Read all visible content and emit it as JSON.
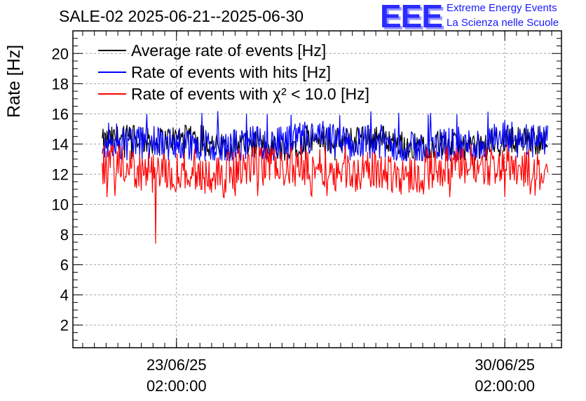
{
  "header": {
    "title": "SALE-02 2025-06-21--2025-06-30",
    "logo_text": "EEE",
    "logo_line1": "Extreme Energy Events",
    "logo_line2": "La Scienza nelle Scuole"
  },
  "chart_data": {
    "type": "line",
    "ylabel": "Rate [Hz]",
    "ylim": [
      0.5,
      21.5
    ],
    "yticks": [
      2,
      4,
      6,
      8,
      10,
      12,
      14,
      16,
      18,
      20
    ],
    "xlim": [
      "2025-06-20 21:00",
      "2025-07-01 07:00"
    ],
    "xticks": [
      {
        "x": "2025-06-23 02:00",
        "label1": "23/06/25",
        "label2": "02:00:00"
      },
      {
        "x": "2025-06-30 02:00",
        "label1": "30/06/25",
        "label2": "02:00:00"
      }
    ],
    "grid": true,
    "legend_position": "top-left",
    "series": [
      {
        "name": "Average rate of events [Hz]",
        "color": "#000000",
        "x_start": "2025-06-21 12:00",
        "x_end": "2025-07-01 00:00",
        "mean": 14.1,
        "min": 12.9,
        "max": 15.3
      },
      {
        "name": "Rate of events with hits [Hz]",
        "color": "#0000ff",
        "x_start": "2025-06-21 12:00",
        "x_end": "2025-07-01 00:00",
        "mean": 14.0,
        "min": 12.9,
        "max": 16.2
      },
      {
        "name": "Rate of events with χ² < 10.0 [Hz]",
        "color": "#ff0000",
        "x_start": "2025-06-21 12:00",
        "x_end": "2025-07-01 00:00",
        "mean": 12.3,
        "min": 10.4,
        "max": 14.0,
        "outlier_min": 7.4
      }
    ]
  }
}
